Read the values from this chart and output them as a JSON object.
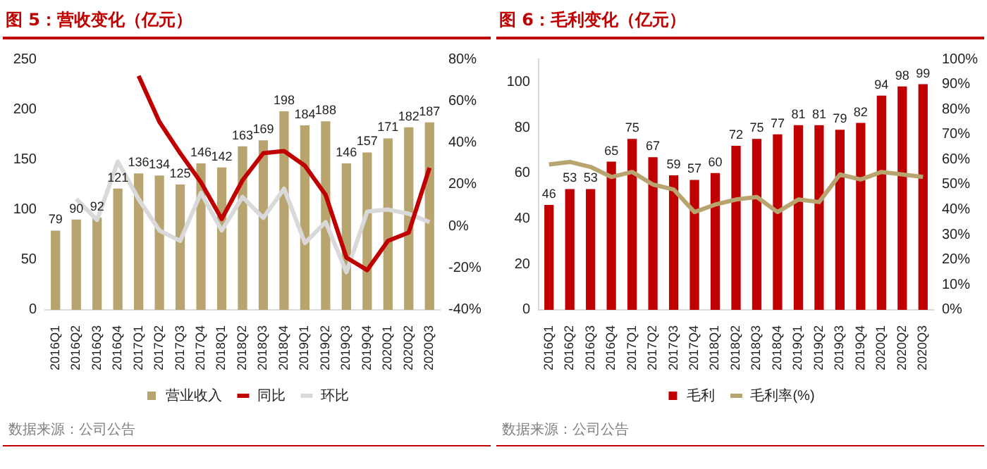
{
  "chart_data": [
    {
      "type": "bar",
      "title": "图 5：营收变化（亿元）",
      "categories": [
        "2016Q1",
        "2016Q2",
        "2016Q3",
        "2016Q4",
        "2017Q1",
        "2017Q2",
        "2017Q3",
        "2017Q4",
        "2018Q1",
        "2018Q2",
        "2018Q3",
        "2018Q4",
        "2019Q1",
        "2019Q2",
        "2019Q3",
        "2019Q4",
        "2020Q1",
        "2020Q2",
        "2020Q3"
      ],
      "series": [
        {
          "name": "营业收入",
          "color": "#b8a46e",
          "values": [
            79,
            90,
            92,
            121,
            136,
            134,
            125,
            146,
            142,
            163,
            169,
            198,
            184,
            188,
            146,
            157,
            171,
            182,
            187
          ],
          "value_labels": [
            "79",
            "90",
            "92",
            "121",
            "136",
            "134",
            "125",
            "146",
            "142",
            "163",
            "169",
            "198",
            "184",
            "188",
            "146",
            "157",
            "171",
            "182",
            "187"
          ]
        },
        {
          "name": "同比",
          "type": "line",
          "axis": "y2",
          "color": "#c00000",
          "values": [
            null,
            null,
            null,
            null,
            72,
            50,
            35,
            21,
            3.5,
            22,
            35,
            36,
            29,
            15,
            -15,
            -21,
            -7,
            -3,
            28
          ]
        },
        {
          "name": "环比",
          "type": "line",
          "axis": "y2",
          "color": "#d9d9d9",
          "values": [
            null,
            13,
            3,
            31,
            13,
            -2,
            -7,
            16,
            -2,
            14,
            4,
            18,
            -8,
            2,
            -22,
            7,
            8,
            6,
            2
          ]
        }
      ],
      "ylim": [
        0,
        250
      ],
      "yticks": [
        0,
        50,
        100,
        150,
        200,
        250
      ],
      "y2lim": [
        -40,
        80
      ],
      "y2ticks": [
        {
          "value": -40,
          "label": "-40%"
        },
        {
          "value": -20,
          "label": "-20%"
        },
        {
          "value": 0,
          "label": "0%"
        },
        {
          "value": 20,
          "label": "20%"
        },
        {
          "value": 40,
          "label": "40%"
        },
        {
          "value": 60,
          "label": "60%"
        },
        {
          "value": 80,
          "label": "80%"
        }
      ],
      "grid": false,
      "legend": "bottom",
      "marker": "none",
      "line_style": "solid",
      "annotations": [
        "数据来源：公司公告"
      ]
    },
    {
      "type": "bar",
      "title": "图 6：毛利变化（亿元）",
      "categories": [
        "2016Q1",
        "2016Q2",
        "2016Q3",
        "2016Q4",
        "2017Q1",
        "2017Q2",
        "2017Q3",
        "2017Q4",
        "2018Q1",
        "2018Q2",
        "2018Q3",
        "2018Q4",
        "2019Q1",
        "2019Q2",
        "2019Q3",
        "2019Q4",
        "2020Q1",
        "2020Q2",
        "2020Q3"
      ],
      "series": [
        {
          "name": "毛利",
          "color": "#c00000",
          "values": [
            46,
            53,
            53,
            65,
            75,
            67,
            59,
            57,
            60,
            72,
            75,
            77,
            81,
            81,
            79,
            82,
            94,
            98,
            99
          ],
          "value_labels": [
            "46",
            "53",
            "53",
            "65",
            "75",
            "67",
            "59",
            "57",
            "60",
            "72",
            "75",
            "77",
            "81",
            "81",
            "79",
            "82",
            "94",
            "98",
            "99"
          ]
        },
        {
          "name": "毛利率(%)",
          "type": "line",
          "axis": "y2",
          "color": "#b8a46e",
          "values": [
            58,
            59,
            57,
            53,
            55,
            50,
            48,
            39,
            42,
            44,
            45,
            39,
            44,
            43,
            54,
            52,
            55,
            54,
            53
          ]
        }
      ],
      "ylim": [
        0,
        110
      ],
      "yticks": [
        0,
        20,
        40,
        60,
        80,
        100
      ],
      "y2lim": [
        0,
        100
      ],
      "y2ticks": [
        {
          "value": 0,
          "label": "0%"
        },
        {
          "value": 10,
          "label": "10%"
        },
        {
          "value": 20,
          "label": "20%"
        },
        {
          "value": 30,
          "label": "30%"
        },
        {
          "value": 40,
          "label": "40%"
        },
        {
          "value": 50,
          "label": "50%"
        },
        {
          "value": 60,
          "label": "60%"
        },
        {
          "value": 70,
          "label": "70%"
        },
        {
          "value": 80,
          "label": "80%"
        },
        {
          "value": 90,
          "label": "90%"
        },
        {
          "value": 100,
          "label": "100%"
        }
      ],
      "grid": false,
      "legend": "bottom",
      "marker": "none",
      "line_style": "solid",
      "annotations": [
        "数据来源：公司公告"
      ]
    }
  ]
}
